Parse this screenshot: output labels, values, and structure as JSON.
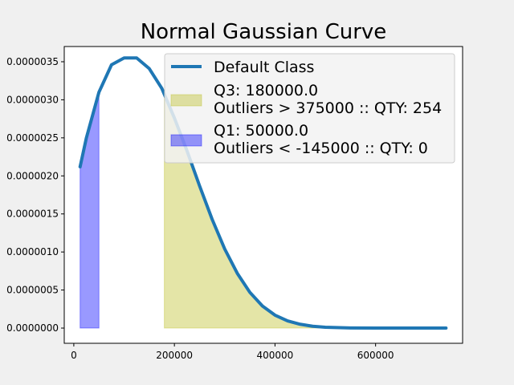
{
  "chart_data": {
    "type": "area",
    "title": "Normal Gaussian Curve",
    "xlabel": "",
    "ylabel": "",
    "xlim": [
      -19000,
      773000
    ],
    "ylim": [
      -2e-07,
      3.7e-06
    ],
    "x_ticks": [
      {
        "value": 0,
        "label": "0"
      },
      {
        "value": 200000,
        "label": "200000"
      },
      {
        "value": 400000,
        "label": "400000"
      },
      {
        "value": 600000,
        "label": "600000"
      }
    ],
    "y_ticks": [
      {
        "value": 0.0,
        "label": "0.0000000"
      },
      {
        "value": 5e-07,
        "label": "0.0000005"
      },
      {
        "value": 1e-06,
        "label": "0.0000010"
      },
      {
        "value": 1.5e-06,
        "label": "0.0000015"
      },
      {
        "value": 2e-06,
        "label": "0.0000020"
      },
      {
        "value": 2.5e-06,
        "label": "0.0000025"
      },
      {
        "value": 3e-06,
        "label": "0.0000030"
      },
      {
        "value": 3.5e-06,
        "label": "0.0000035"
      }
    ],
    "grid": false,
    "legend_position": "top-right",
    "line_series": {
      "name": "Default Class",
      "color": "#1f77b4",
      "x": [
        12500,
        25000,
        50000,
        75000,
        100000,
        125000,
        150000,
        175000,
        200000,
        225000,
        250000,
        275000,
        300000,
        325000,
        350000,
        375000,
        400000,
        425000,
        450000,
        475000,
        500000,
        550000,
        600000,
        650000,
        700000,
        740000
      ],
      "y": [
        2.12e-06,
        2.5e-06,
        3.1e-06,
        3.46e-06,
        3.55e-06,
        3.55e-06,
        3.41e-06,
        3.15e-06,
        2.76e-06,
        2.33e-06,
        1.87e-06,
        1.43e-06,
        1.04e-06,
        7.2e-07,
        4.7e-07,
        2.9e-07,
        1.7e-07,
        9.5e-08,
        5e-08,
        2.4e-08,
        1.1e-08,
        2e-09,
        0.0,
        0.0,
        0.0,
        0.0
      ]
    },
    "fill_series": [
      {
        "name": "Q3: 180000.0\nOutliers > 375000 :: QTY: 254",
        "color": "#bcbd22",
        "opacity": 0.4,
        "x_start": 180000,
        "x_end": 740000
      },
      {
        "name": "Q1: 50000.0\nOutliers < -145000 :: QTY: 0",
        "color": "#0000ff",
        "opacity": 0.4,
        "x_start": 12500,
        "x_end": 50000
      }
    ]
  }
}
